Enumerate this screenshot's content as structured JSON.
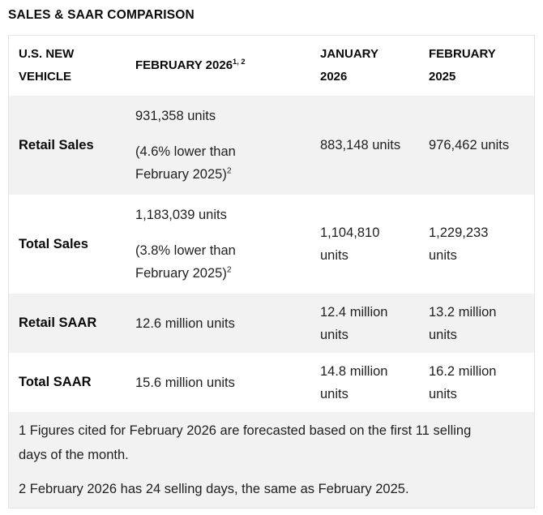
{
  "chart_data": {
    "type": "table",
    "title": "SALES & SAAR COMPARISON",
    "columns": [
      "U.S. NEW VEHICLE",
      "FEBRUARY 2026",
      "JANUARY 2026",
      "FEBRUARY 2025"
    ],
    "february_2026_header_sup": "1, 2",
    "rows": [
      {
        "label": "Retail Sales",
        "feb_2026": "931,358 units",
        "feb_2026_note": "(4.6% lower than February 2025)",
        "feb_2026_note_sup": "2",
        "jan_2026": "883,148 units",
        "feb_2025": "976,462 units"
      },
      {
        "label": "Total Sales",
        "feb_2026": "1,183,039 units",
        "feb_2026_note": "(3.8% lower than February 2025)",
        "feb_2026_note_sup": "2",
        "jan_2026": "1,104,810 units",
        "feb_2025": "1,229,233 units"
      },
      {
        "label": "Retail SAAR",
        "feb_2026": "12.6 million units",
        "jan_2026": "12.4 million units",
        "feb_2025": "13.2 million units"
      },
      {
        "label": "Total SAAR",
        "feb_2026": "15.6 million units",
        "jan_2026": "14.8 million units",
        "feb_2025": "16.2 million units"
      }
    ],
    "footnotes": [
      "1 Figures cited for February 2026 are forecasted based on the first 11 selling days of the month.",
      "2 February 2026 has 24 selling days, the same as February 2025."
    ]
  },
  "colors": {
    "row_stripe": "#f2f2f2",
    "table_border": "#e3e3e3",
    "text": "#1f1f1f",
    "heading_text": "#0a0a0a"
  }
}
